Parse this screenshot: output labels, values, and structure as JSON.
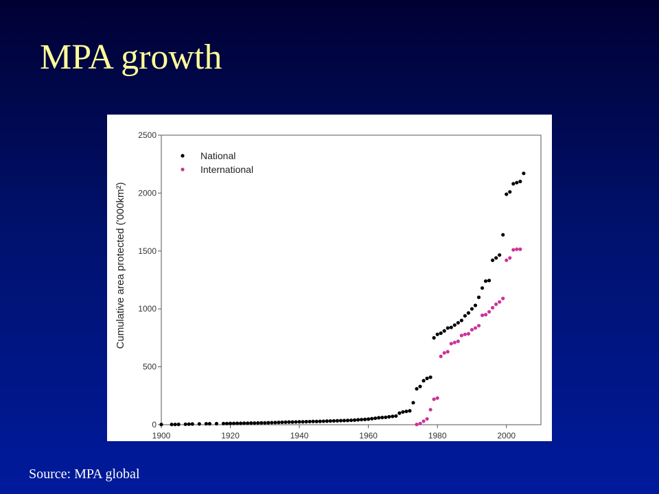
{
  "slide": {
    "title": "MPA growth",
    "source": "Source: MPA global",
    "background_top": "#000033",
    "background_bottom": "#001a9c",
    "title_color": "#ffff99"
  },
  "chart_data": {
    "type": "scatter",
    "title": "",
    "xlabel": "",
    "ylabel": "Cumulative area protected ('000km²)",
    "xlim": [
      1900,
      2010
    ],
    "ylim": [
      0,
      2500
    ],
    "xticks": [
      1900,
      1920,
      1940,
      1960,
      1980,
      2000
    ],
    "yticks": [
      0,
      500,
      1000,
      1500,
      2000,
      2500
    ],
    "grid": false,
    "legend_position": "top-left",
    "series": [
      {
        "name": "National",
        "color": "#000000",
        "points": [
          [
            1900,
            2
          ],
          [
            1903,
            2
          ],
          [
            1904,
            2
          ],
          [
            1905,
            3
          ],
          [
            1907,
            4
          ],
          [
            1908,
            5
          ],
          [
            1909,
            6
          ],
          [
            1911,
            7
          ],
          [
            1913,
            8
          ],
          [
            1914,
            8
          ],
          [
            1916,
            9
          ],
          [
            1918,
            10
          ],
          [
            1919,
            10
          ],
          [
            1920,
            11
          ],
          [
            1921,
            11
          ],
          [
            1922,
            12
          ],
          [
            1923,
            12
          ],
          [
            1924,
            13
          ],
          [
            1925,
            13
          ],
          [
            1926,
            14
          ],
          [
            1927,
            14
          ],
          [
            1928,
            15
          ],
          [
            1929,
            16
          ],
          [
            1930,
            16
          ],
          [
            1931,
            17
          ],
          [
            1932,
            18
          ],
          [
            1933,
            19
          ],
          [
            1934,
            20
          ],
          [
            1935,
            21
          ],
          [
            1936,
            22
          ],
          [
            1937,
            23
          ],
          [
            1938,
            23
          ],
          [
            1939,
            24
          ],
          [
            1940,
            25
          ],
          [
            1941,
            25
          ],
          [
            1942,
            26
          ],
          [
            1943,
            27
          ],
          [
            1944,
            28
          ],
          [
            1945,
            28
          ],
          [
            1946,
            29
          ],
          [
            1947,
            30
          ],
          [
            1948,
            31
          ],
          [
            1949,
            32
          ],
          [
            1950,
            33
          ],
          [
            1951,
            34
          ],
          [
            1952,
            35
          ],
          [
            1953,
            36
          ],
          [
            1954,
            37
          ],
          [
            1955,
            38
          ],
          [
            1956,
            40
          ],
          [
            1957,
            42
          ],
          [
            1958,
            44
          ],
          [
            1959,
            46
          ],
          [
            1960,
            48
          ],
          [
            1961,
            52
          ],
          [
            1962,
            56
          ],
          [
            1963,
            60
          ],
          [
            1964,
            62
          ],
          [
            1965,
            64
          ],
          [
            1966,
            68
          ],
          [
            1967,
            72
          ],
          [
            1968,
            75
          ],
          [
            1969,
            100
          ],
          [
            1970,
            110
          ],
          [
            1971,
            115
          ],
          [
            1972,
            120
          ],
          [
            1973,
            190
          ],
          [
            1974,
            310
          ],
          [
            1975,
            330
          ],
          [
            1976,
            380
          ],
          [
            1977,
            400
          ],
          [
            1978,
            410
          ],
          [
            1979,
            750
          ],
          [
            1980,
            780
          ],
          [
            1981,
            790
          ],
          [
            1982,
            810
          ],
          [
            1983,
            835
          ],
          [
            1984,
            840
          ],
          [
            1985,
            860
          ],
          [
            1986,
            880
          ],
          [
            1987,
            900
          ],
          [
            1988,
            940
          ],
          [
            1989,
            965
          ],
          [
            1990,
            1000
          ],
          [
            1991,
            1030
          ],
          [
            1992,
            1100
          ],
          [
            1993,
            1180
          ],
          [
            1994,
            1240
          ],
          [
            1995,
            1245
          ],
          [
            1996,
            1420
          ],
          [
            1997,
            1440
          ],
          [
            1998,
            1465
          ],
          [
            1999,
            1640
          ],
          [
            2000,
            1990
          ],
          [
            2001,
            2010
          ],
          [
            2002,
            2080
          ],
          [
            2003,
            2090
          ],
          [
            2004,
            2100
          ],
          [
            2005,
            2170
          ]
        ]
      },
      {
        "name": "International",
        "color": "#cc3399",
        "points": [
          [
            1974,
            2
          ],
          [
            1975,
            10
          ],
          [
            1976,
            30
          ],
          [
            1977,
            50
          ],
          [
            1978,
            130
          ],
          [
            1979,
            220
          ],
          [
            1980,
            230
          ],
          [
            1981,
            590
          ],
          [
            1982,
            620
          ],
          [
            1983,
            630
          ],
          [
            1984,
            700
          ],
          [
            1985,
            710
          ],
          [
            1986,
            720
          ],
          [
            1987,
            770
          ],
          [
            1988,
            780
          ],
          [
            1989,
            785
          ],
          [
            1990,
            820
          ],
          [
            1991,
            835
          ],
          [
            1992,
            855
          ],
          [
            1993,
            945
          ],
          [
            1994,
            950
          ],
          [
            1995,
            975
          ],
          [
            1996,
            1010
          ],
          [
            1997,
            1040
          ],
          [
            1998,
            1060
          ],
          [
            1999,
            1090
          ],
          [
            2000,
            1420
          ],
          [
            2001,
            1440
          ],
          [
            2002,
            1510
          ],
          [
            2003,
            1515
          ],
          [
            2004,
            1515
          ]
        ]
      }
    ]
  }
}
